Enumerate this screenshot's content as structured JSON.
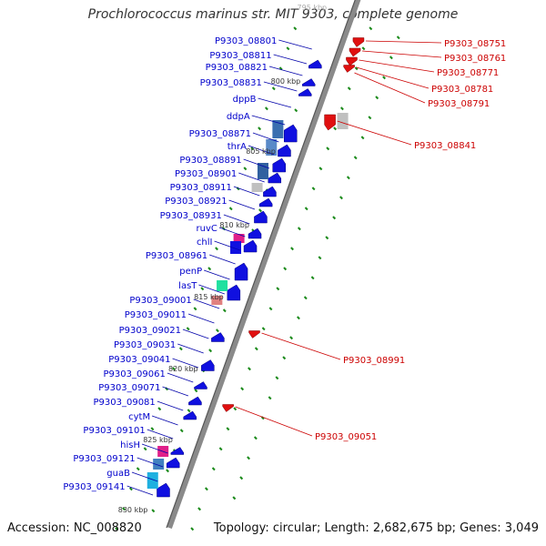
{
  "title": "Prochlorococcus marinus str. MIT 9303, complete genome",
  "footer": {
    "accession": "Accession: NC_008820",
    "summary": "Topology: circular; Length: 2,682,675 bp; Genes: 3,049"
  },
  "colors": {
    "left_label": "#0000cc",
    "right_label": "#cc0000",
    "tick": "#1a8a1a",
    "backbone": "#8a8a8a",
    "forward_gene": "#1010e0",
    "reverse_gene": "#e01010"
  },
  "kbp_markers": [
    "795 kbp",
    "800 kbp",
    "805 kbp",
    "810 kbp",
    "815 kbp",
    "820 kbp",
    "825 kbp",
    "830 kbp"
  ],
  "left_labels": [
    "P9303_08801",
    "P9303_08811",
    "P9303_08821",
    "P9303_08831",
    "dppB",
    "ddpA",
    "P9303_08871",
    "thrA",
    "P9303_08891",
    "P9303_08901",
    "P9303_08911",
    "P9303_08921",
    "P9303_08931",
    "ruvC",
    "chlI",
    "P9303_08961",
    "penP",
    "lasT",
    "P9303_09001",
    "P9303_09011",
    "P9303_09021",
    "P9303_09031",
    "P9303_09041",
    "P9303_09061",
    "P9303_09071",
    "P9303_09081",
    "cytM",
    "P9303_09101",
    "hisH",
    "P9303_09121",
    "guaB",
    "P9303_09141"
  ],
  "right_labels": [
    "P9303_08751",
    "P9303_08761",
    "P9303_08771",
    "P9303_08781",
    "P9303_08791",
    "P9303_08841",
    "P9303_08991",
    "P9303_09051"
  ]
}
